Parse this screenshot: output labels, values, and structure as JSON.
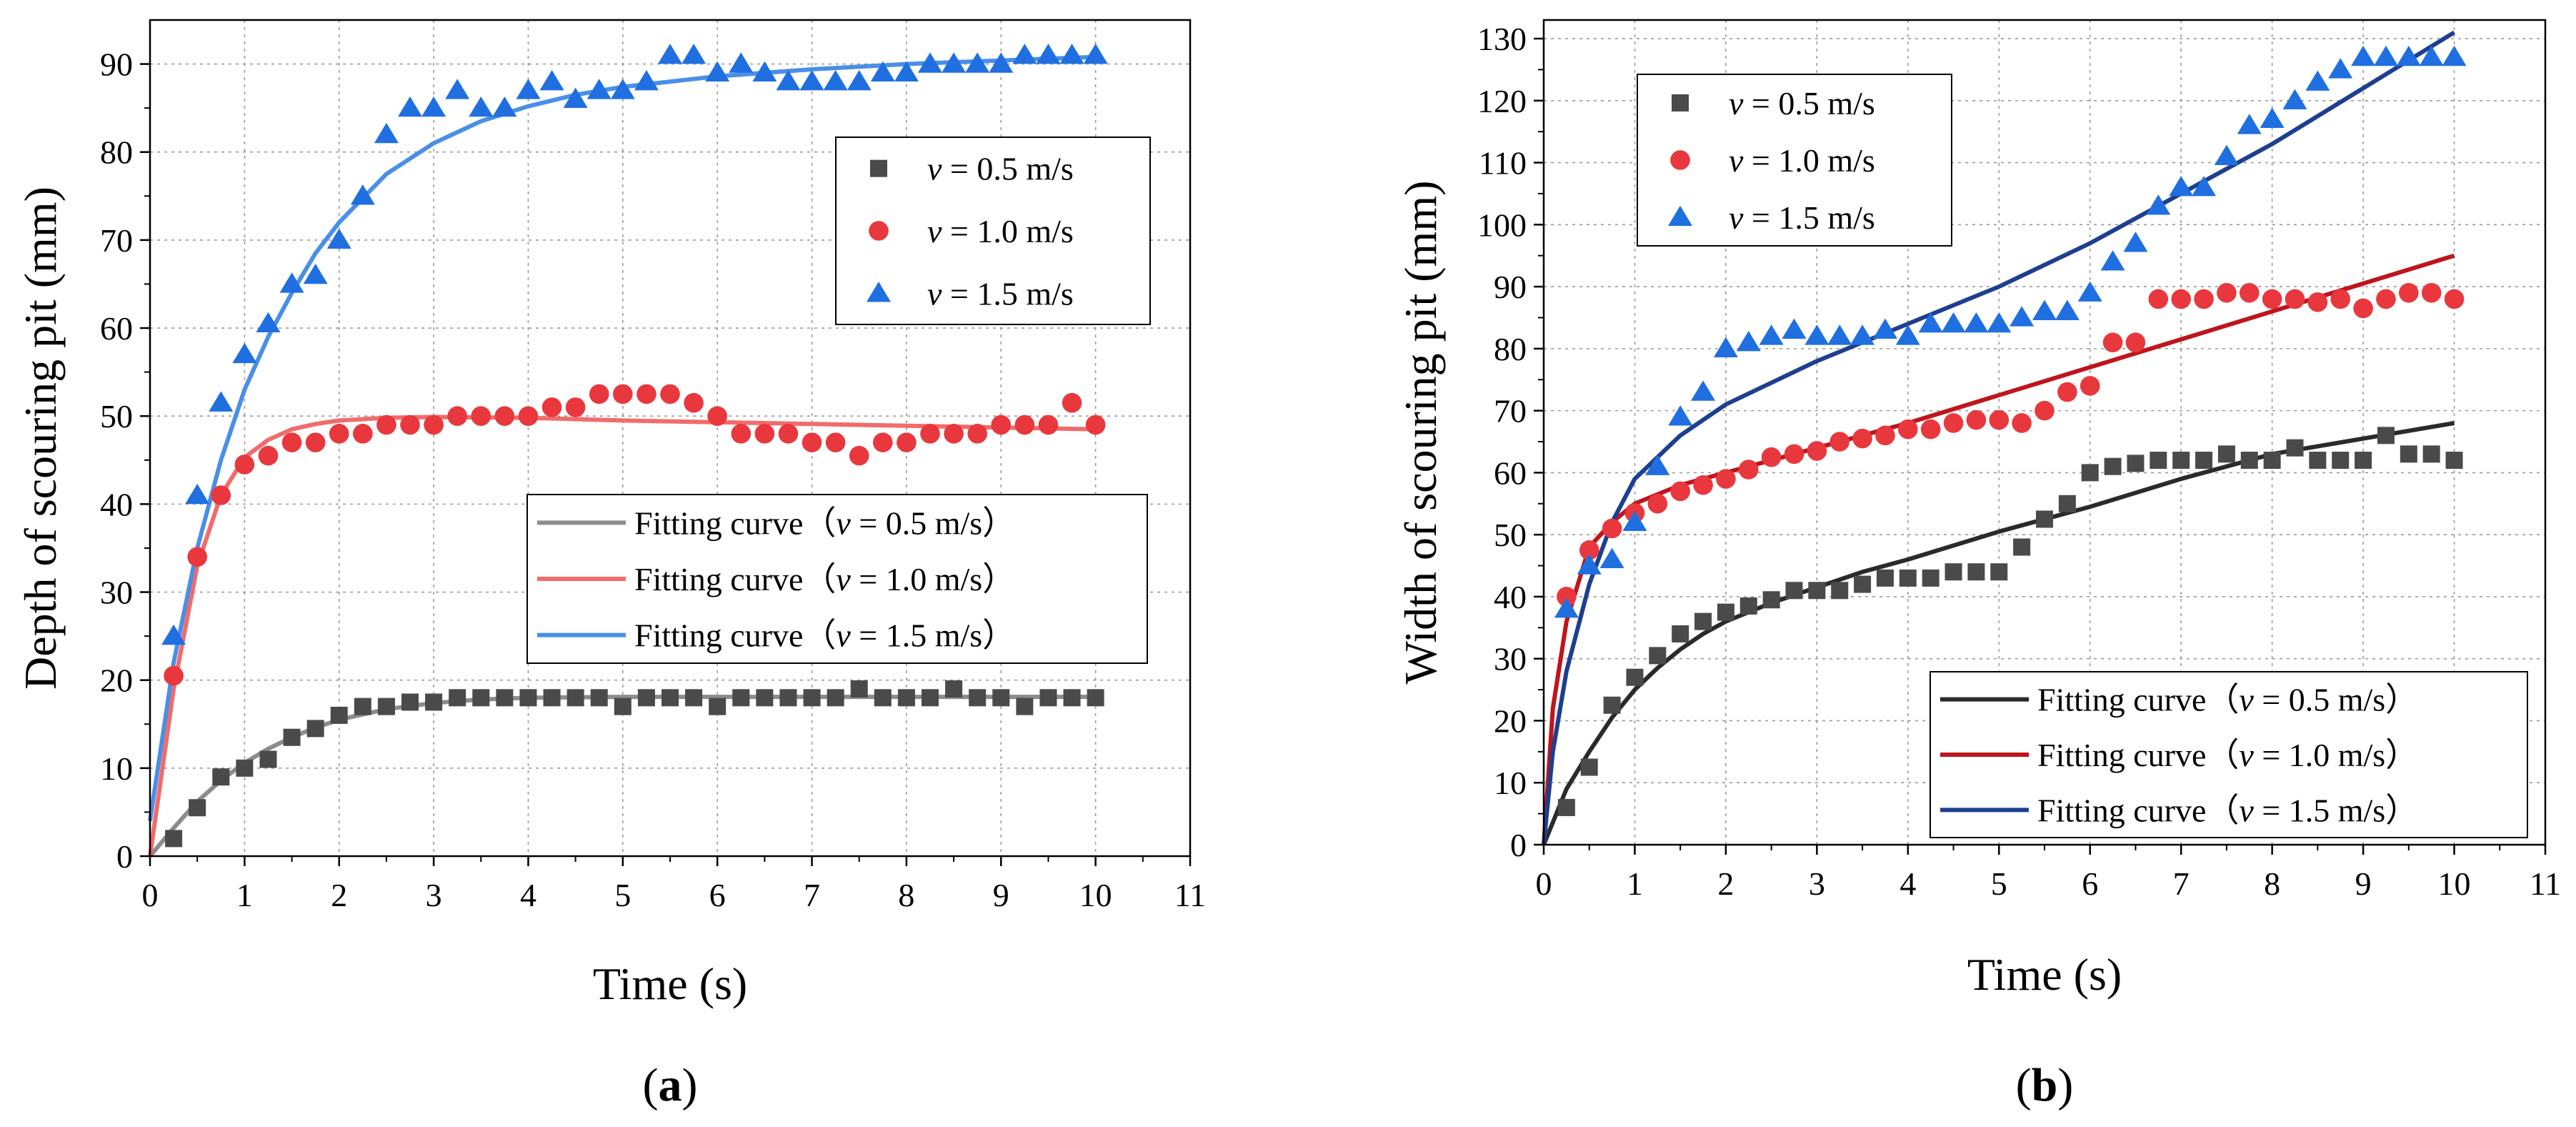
{
  "chart_data": [
    {
      "type": "scatter",
      "panel_label": "a",
      "xlabel": "Time (s)",
      "ylabel": "Depth of scouring pit (mm)",
      "xlim": [
        0,
        11
      ],
      "ylim": [
        0,
        95
      ],
      "xticks": [
        0,
        1,
        2,
        3,
        4,
        5,
        6,
        7,
        8,
        9,
        10,
        11
      ],
      "yticks": [
        0,
        10,
        20,
        30,
        40,
        50,
        60,
        70,
        80,
        90
      ],
      "grid": true,
      "legend_markers": {
        "placement": "upper-right",
        "prefix": "v",
        "entries": [
          " = 0.5 m/s",
          " = 1.0 m/s",
          " = 1.5 m/s"
        ]
      },
      "legend_curves": {
        "placement": "center-right",
        "prefix": "Fitting curve（",
        "italic": "v",
        "entries": [
          " = 0.5 m/s）",
          " = 1.0 m/s）",
          " = 1.5 m/s）"
        ]
      },
      "series": [
        {
          "name": "v = 0.5 m/s",
          "marker": "square",
          "color": "#4a4a4a",
          "x": [
            0.25,
            0.5,
            0.75,
            1.0,
            1.25,
            1.5,
            1.75,
            2.0,
            2.25,
            2.5,
            2.75,
            3.0,
            3.25,
            3.5,
            3.75,
            4.0,
            4.25,
            4.5,
            4.75,
            5.0,
            5.25,
            5.5,
            5.75,
            6.0,
            6.25,
            6.5,
            6.75,
            7.0,
            7.25,
            7.5,
            7.75,
            8.0,
            8.25,
            8.5,
            8.75,
            9.0,
            9.25,
            9.5,
            9.75,
            10.0
          ],
          "y": [
            2,
            5.5,
            9,
            10,
            11,
            13.5,
            14.5,
            16,
            17,
            17,
            17.5,
            17.5,
            18,
            18,
            18,
            18,
            18,
            18,
            18,
            17,
            18,
            18,
            18,
            17,
            18,
            18,
            18,
            18,
            18,
            19,
            18,
            18,
            18,
            19,
            18,
            18,
            17,
            18,
            18,
            18
          ]
        },
        {
          "name": "v = 1.0 m/s",
          "marker": "circle",
          "color": "#e8383d",
          "x": [
            0.25,
            0.5,
            0.75,
            1.0,
            1.25,
            1.5,
            1.75,
            2.0,
            2.25,
            2.5,
            2.75,
            3.0,
            3.25,
            3.5,
            3.75,
            4.0,
            4.25,
            4.5,
            4.75,
            5.0,
            5.25,
            5.5,
            5.75,
            6.0,
            6.25,
            6.5,
            6.75,
            7.0,
            7.25,
            7.5,
            7.75,
            8.0,
            8.25,
            8.5,
            8.75,
            9.0,
            9.25,
            9.5,
            9.75,
            10.0
          ],
          "y": [
            20.5,
            34,
            41,
            44.5,
            45.5,
            47,
            47,
            48,
            48,
            49,
            49,
            49,
            50,
            50,
            50,
            50,
            51,
            51,
            52.5,
            52.5,
            52.5,
            52.5,
            51.5,
            50,
            48,
            48,
            48,
            47,
            47,
            45.5,
            47,
            47,
            48,
            48,
            48,
            49,
            49,
            49,
            51.5,
            49
          ]
        },
        {
          "name": "v = 1.5 m/s",
          "marker": "triangle",
          "color": "#1f6fe0",
          "x": [
            0.25,
            0.5,
            0.75,
            1.0,
            1.25,
            1.5,
            1.75,
            2.0,
            2.25,
            2.5,
            2.75,
            3.0,
            3.25,
            3.5,
            3.75,
            4.0,
            4.25,
            4.5,
            4.75,
            5.0,
            5.25,
            5.5,
            5.75,
            6.0,
            6.25,
            6.5,
            6.75,
            7.0,
            7.25,
            7.5,
            7.75,
            8.0,
            8.25,
            8.5,
            8.75,
            9.0,
            9.25,
            9.5,
            9.75,
            10.0
          ],
          "y": [
            25,
            41,
            51.5,
            57,
            60.5,
            65,
            66,
            70,
            75,
            82,
            85,
            85,
            87,
            85,
            85,
            87,
            88,
            86,
            87,
            87,
            88,
            91,
            91,
            89,
            90,
            89,
            88,
            88,
            88,
            88,
            89,
            89,
            90,
            90,
            90,
            90,
            91,
            91,
            91,
            91
          ]
        }
      ],
      "fit_curves": [
        {
          "name": "Fitting curve（v = 0.5 m/s）",
          "color": "#8c8c8c",
          "x": [
            0,
            0.25,
            0.5,
            0.75,
            1.0,
            1.25,
            1.5,
            1.75,
            2.0,
            2.5,
            3.0,
            3.5,
            4.0,
            5.0,
            6.0,
            7.0,
            8.0,
            9.0,
            10.0
          ],
          "y": [
            0,
            3.2,
            6.2,
            8.6,
            10.6,
            12.2,
            13.5,
            14.6,
            15.5,
            16.7,
            17.4,
            17.8,
            18.0,
            18.1,
            18.1,
            18.1,
            18.1,
            18.1,
            18.1
          ]
        },
        {
          "name": "Fitting curve（v = 1.0 m/s）",
          "color": "#f26b6b",
          "x": [
            0,
            0.25,
            0.5,
            0.75,
            1.0,
            1.25,
            1.5,
            1.75,
            2.0,
            2.5,
            3.0,
            4.0,
            5.0,
            6.0,
            7.0,
            8.0,
            9.0,
            10.0
          ],
          "y": [
            0,
            19,
            33,
            41,
            45.3,
            47.3,
            48.5,
            49.1,
            49.5,
            49.8,
            49.9,
            49.8,
            49.5,
            49.3,
            49.1,
            48.9,
            48.7,
            48.5
          ]
        },
        {
          "name": "Fitting curve（v = 1.5 m/s）",
          "color": "#4a8fe6",
          "x": [
            0,
            0.25,
            0.5,
            0.75,
            1.0,
            1.25,
            1.5,
            1.75,
            2.0,
            2.5,
            3.0,
            3.5,
            4.0,
            4.5,
            5.0,
            6.0,
            7.0,
            8.0,
            9.0,
            10.0
          ],
          "y": [
            4,
            22,
            35,
            45,
            53,
            59,
            64,
            68.5,
            72,
            77.5,
            81,
            83.5,
            85.2,
            86.5,
            87.4,
            88.6,
            89.4,
            90,
            90.4,
            90.8
          ]
        }
      ]
    },
    {
      "type": "scatter",
      "panel_label": "b",
      "xlabel": "Time (s)",
      "ylabel": "Width of scouring pit (mm)",
      "xlim": [
        0,
        11
      ],
      "ylim": [
        0,
        133
      ],
      "xticks": [
        0,
        1,
        2,
        3,
        4,
        5,
        6,
        7,
        8,
        9,
        10,
        11
      ],
      "yticks": [
        0,
        10,
        20,
        30,
        40,
        50,
        60,
        70,
        80,
        90,
        100,
        110,
        120,
        130
      ],
      "grid": true,
      "legend_markers": {
        "placement": "upper-left",
        "prefix": "v",
        "entries": [
          " = 0.5 m/s",
          " = 1.0 m/s",
          " = 1.5 m/s"
        ]
      },
      "legend_curves": {
        "placement": "lower-right",
        "prefix": "Fitting curve（",
        "italic": "v",
        "entries": [
          " = 0.5 m/s）",
          " = 1.0 m/s）",
          " = 1.5 m/s）"
        ]
      },
      "series": [
        {
          "name": "v = 0.5 m/s",
          "marker": "square",
          "color": "#4a4a4a",
          "x": [
            0.25,
            0.5,
            0.75,
            1.0,
            1.25,
            1.5,
            1.75,
            2.0,
            2.25,
            2.5,
            2.75,
            3.0,
            3.25,
            3.5,
            3.75,
            4.0,
            4.25,
            4.5,
            4.75,
            5.0,
            5.25,
            5.5,
            5.75,
            6.0,
            6.25,
            6.5,
            6.75,
            7.0,
            7.25,
            7.5,
            7.75,
            8.0,
            8.25,
            8.5,
            8.75,
            9.0,
            9.25,
            9.5,
            9.75,
            10.0
          ],
          "y": [
            6,
            12.5,
            22.5,
            27,
            30.5,
            34,
            36,
            37.5,
            38.5,
            39.5,
            41,
            41,
            41,
            42,
            43,
            43,
            43,
            44,
            44,
            44,
            48,
            52.5,
            55,
            60,
            61,
            61.5,
            62,
            62,
            62,
            63,
            62,
            62,
            64,
            62,
            62,
            62,
            66,
            63,
            63,
            62
          ]
        },
        {
          "name": "v = 1.0 m/s",
          "marker": "circle",
          "color": "#e8383d",
          "x": [
            0.25,
            0.5,
            0.75,
            1.0,
            1.25,
            1.5,
            1.75,
            2.0,
            2.25,
            2.5,
            2.75,
            3.0,
            3.25,
            3.5,
            3.75,
            4.0,
            4.25,
            4.5,
            4.75,
            5.0,
            5.25,
            5.5,
            5.75,
            6.0,
            6.25,
            6.5,
            6.75,
            7.0,
            7.25,
            7.5,
            7.75,
            8.0,
            8.25,
            8.5,
            8.75,
            9.0,
            9.25,
            9.5,
            9.75,
            10.0
          ],
          "y": [
            40,
            47.5,
            51,
            53.5,
            55,
            57,
            58,
            59,
            60.5,
            62.5,
            63,
            63.5,
            65,
            65.5,
            66,
            67,
            67,
            68,
            68.5,
            68.5,
            68,
            70,
            73,
            74,
            81,
            81,
            88,
            88,
            88,
            89,
            89,
            88,
            88,
            87.5,
            88,
            86.5,
            88,
            89,
            89,
            88
          ]
        },
        {
          "name": "v = 1.5 m/s",
          "marker": "triangle",
          "color": "#1f6fe0",
          "x": [
            0.25,
            0.5,
            0.75,
            1.0,
            1.25,
            1.5,
            1.75,
            2.0,
            2.25,
            2.5,
            2.75,
            3.0,
            3.25,
            3.5,
            3.75,
            4.0,
            4.25,
            4.5,
            4.75,
            5.0,
            5.25,
            5.5,
            5.75,
            6.0,
            6.25,
            6.5,
            6.75,
            7.0,
            7.25,
            7.5,
            7.75,
            8.0,
            8.25,
            8.5,
            8.75,
            9.0,
            9.25,
            9.5,
            9.75,
            10.0
          ],
          "y": [
            38,
            45,
            46,
            52,
            61,
            69,
            73,
            80,
            81,
            82,
            83,
            82,
            82,
            82,
            83,
            82,
            84,
            84,
            84,
            84,
            85,
            86,
            86,
            89,
            94,
            97,
            103,
            106,
            106,
            111,
            116,
            117,
            120,
            123,
            125,
            127,
            127,
            127,
            127,
            127
          ]
        }
      ],
      "fit_curves": [
        {
          "name": "Fitting curve（v = 0.5 m/s）",
          "color": "#2a2a2a",
          "x": [
            0,
            0.25,
            0.5,
            0.75,
            1.0,
            1.25,
            1.5,
            1.75,
            2.0,
            2.5,
            3.0,
            3.5,
            4.0,
            5.0,
            6.0,
            7.0,
            8.0,
            9.0,
            10.0
          ],
          "y": [
            0,
            9,
            15,
            20.5,
            25,
            28.5,
            31.5,
            34,
            36,
            39,
            41.5,
            44,
            46,
            50.5,
            54.5,
            59,
            63,
            65.5,
            68
          ]
        },
        {
          "name": "Fitting curve（v = 1.0 m/s）",
          "color": "#c0141c",
          "x": [
            0,
            0.1,
            0.25,
            0.5,
            0.75,
            1.0,
            1.5,
            2.0,
            3.0,
            4.0,
            5.0,
            6.0,
            7.0,
            8.0,
            9.0,
            10.0
          ],
          "y": [
            0,
            22,
            36,
            48,
            52,
            55,
            58,
            60,
            64,
            68,
            72.5,
            77,
            81.5,
            86,
            90.5,
            95
          ]
        },
        {
          "name": "Fitting curve（v = 1.5 m/s）",
          "color": "#1e3f8f",
          "x": [
            0,
            0.1,
            0.25,
            0.5,
            0.75,
            1.0,
            1.5,
            2.0,
            3.0,
            4.0,
            5.0,
            6.0,
            7.0,
            8.0,
            9.0,
            10.0
          ],
          "y": [
            0,
            15,
            28,
            42,
            52,
            59,
            66,
            71,
            78,
            84,
            90,
            97,
            105,
            113,
            122,
            131
          ]
        }
      ]
    }
  ]
}
